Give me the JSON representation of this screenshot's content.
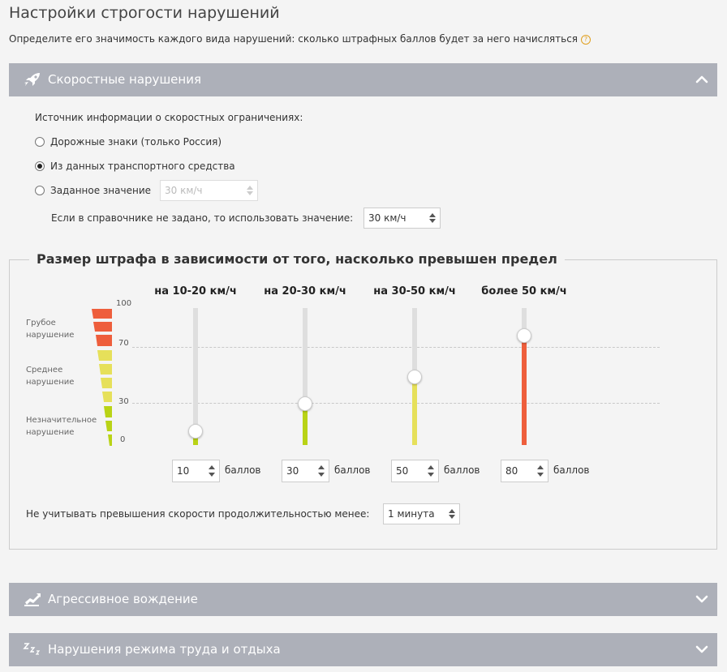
{
  "page": {
    "title": "Настройки строгости нарушений",
    "description": "Определите его значимость каждого вида нарушений: сколько штрафных баллов будет за него начисляться",
    "help_glyph": "?"
  },
  "speed_panel": {
    "title": "Скоростные нарушения",
    "icon": "rocket-icon",
    "source_label": "Источник информации о скоростных ограничениях:",
    "options": [
      {
        "label": "Дорожные знаки (только Россия)",
        "selected": false
      },
      {
        "label": "Из данных транспортного средства",
        "selected": true
      },
      {
        "label": "Заданное значение",
        "selected": false
      }
    ],
    "fixed_value": "30  км/ч",
    "fallback_label": "Если в справочнике не задано, то использовать значение:",
    "fallback_value": "30  км/ч"
  },
  "fine_section": {
    "title": "Размер штрафа в зависимости от того, насколько превышен предел",
    "scale_labels": {
      "max": "100",
      "high": "70",
      "mid": "30",
      "min": "0"
    },
    "severity": {
      "gross": [
        "Грубое",
        "нарушение"
      ],
      "medium": [
        "Среднее",
        "нарушение"
      ],
      "minor": [
        "Незначительное",
        "нарушение"
      ]
    },
    "points_unit": "баллов",
    "sliders": [
      {
        "label": "на 10-20 км/ч",
        "value": 10,
        "value_text": "10",
        "color": "#b9d316"
      },
      {
        "label": "на 20-30 км/ч",
        "value": 30,
        "value_text": "30",
        "color": "#b9d316"
      },
      {
        "label": "на 30-50 км/ч",
        "value": 50,
        "value_text": "50",
        "color": "#e6e05a"
      },
      {
        "label": "более 50 км/ч",
        "value": 80,
        "value_text": "80",
        "color": "#ee5e3c"
      }
    ],
    "ignore_label": "Не учитывать превышения скорости продолжительностью менее:",
    "ignore_value": "1 минута"
  },
  "aggressive_panel": {
    "title": "Агрессивное вождение",
    "icon": "aggressive-driving-icon"
  },
  "rest_panel": {
    "title": "Нарушения режима труда и отдыха",
    "icon": "sleep-zzz-icon"
  },
  "colors": {
    "header_bg": "#adb0b9",
    "gross": "#ee5e3c",
    "medium": "#e6e05a",
    "minor": "#b9d316"
  }
}
